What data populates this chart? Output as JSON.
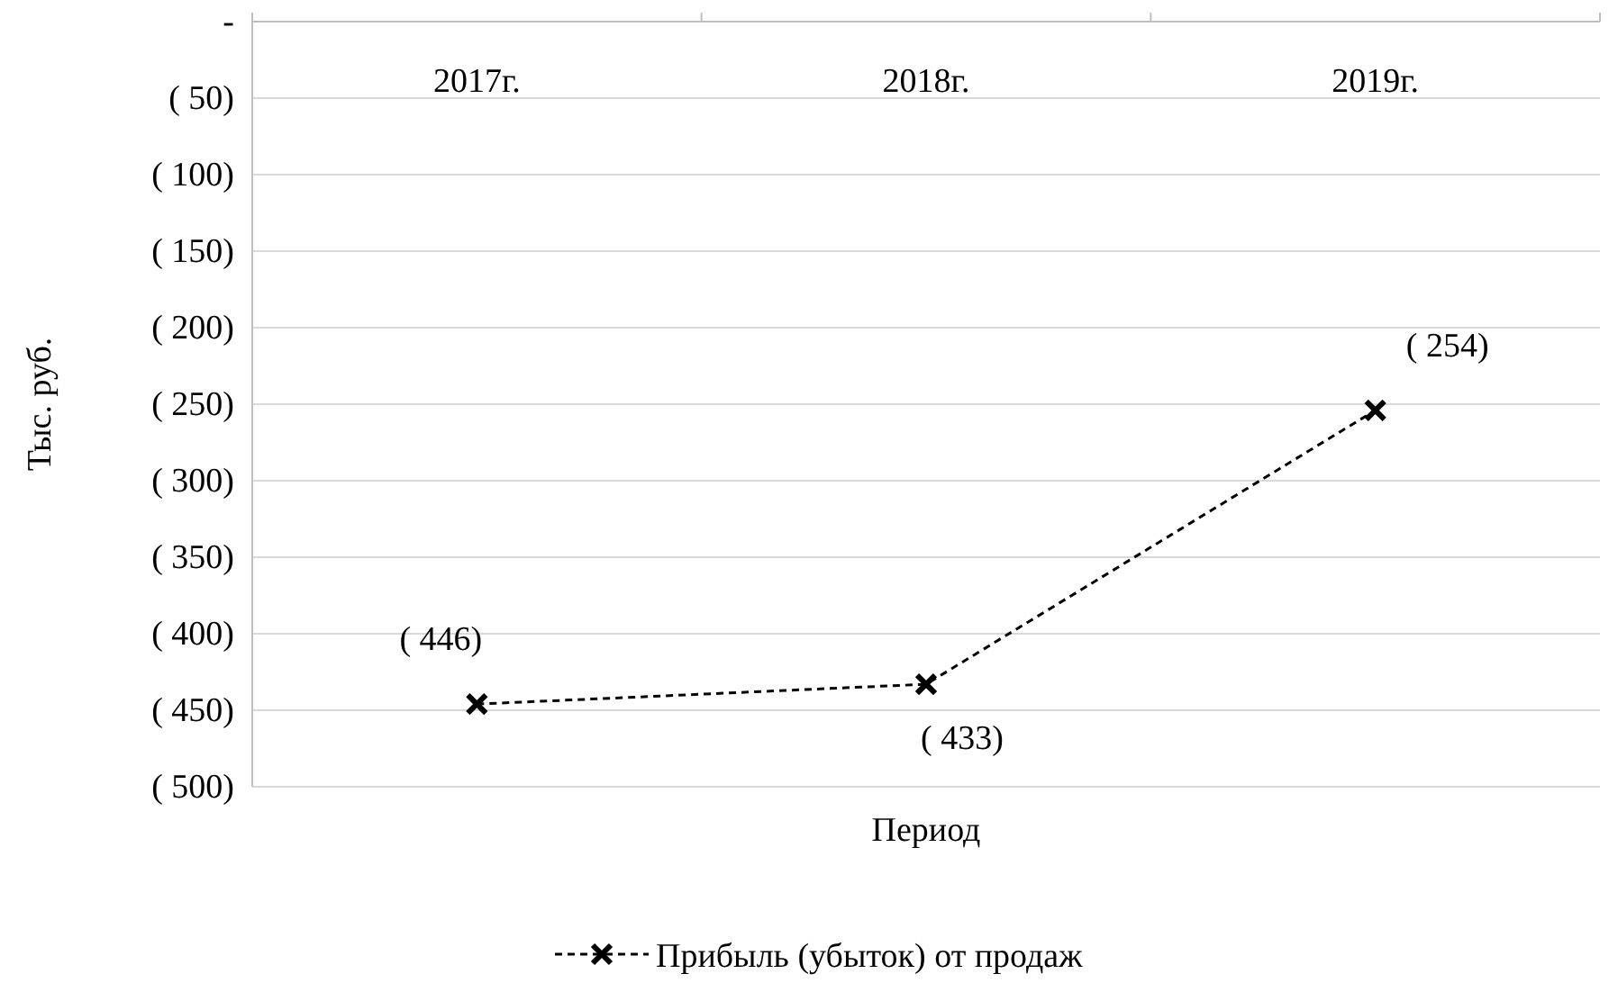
{
  "chart_data": {
    "type": "line",
    "xlabel": "Период",
    "ylabel": "Тыс. руб.",
    "categories": [
      "2017г.",
      "2018г.",
      "2019г."
    ],
    "series": [
      {
        "name": "Прибыль (убыток) от продаж",
        "color": "#000000",
        "values": [
          -446,
          -433,
          -254
        ],
        "value_labels": [
          "( 446)",
          "( 433)",
          "( 254)"
        ]
      }
    ],
    "ylim": [
      -500,
      0
    ],
    "yticks": [
      {
        "value": 0,
        "label": "-"
      },
      {
        "value": -50,
        "label": "( 50)"
      },
      {
        "value": -100,
        "label": "( 100)"
      },
      {
        "value": -150,
        "label": "( 150)"
      },
      {
        "value": -200,
        "label": "( 200)"
      },
      {
        "value": -250,
        "label": "( 250)"
      },
      {
        "value": -300,
        "label": "( 300)"
      },
      {
        "value": -350,
        "label": "( 350)"
      },
      {
        "value": -400,
        "label": "( 400)"
      },
      {
        "value": -450,
        "label": "( 450)"
      },
      {
        "value": -500,
        "label": "( 500)"
      }
    ],
    "grid": "y",
    "legend": "bottom",
    "marker": "cross",
    "line_style": "dashed"
  }
}
